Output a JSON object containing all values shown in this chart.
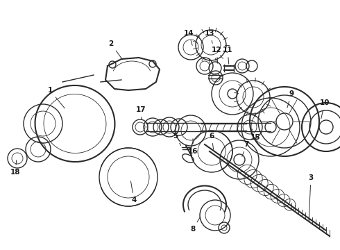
{
  "bg_color": "#ffffff",
  "line_color": "#2a2a2a",
  "label_color": "#1a1a1a",
  "figsize": [
    4.9,
    3.6
  ],
  "dpi": 100,
  "xlim": [
    0,
    490
  ],
  "ylim": [
    0,
    360
  ]
}
